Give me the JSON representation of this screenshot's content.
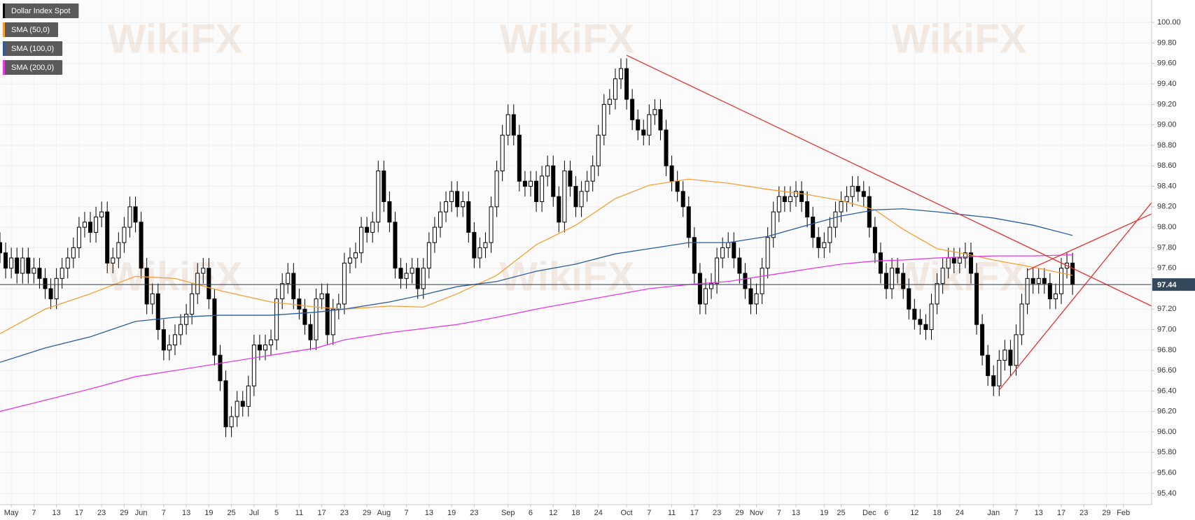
{
  "chart_data": {
    "type": "candlestick",
    "title": "Dollar Index Spot",
    "watermark": "WikiFX",
    "up_color": "#ffffff",
    "down_color": "#000000",
    "candles": {
      "open": [
        97.85,
        97.75,
        97.6,
        97.7,
        97.55,
        97.7,
        97.55,
        97.6,
        97.5,
        97.4,
        97.3,
        97.5,
        97.6,
        97.7,
        97.8,
        98.0,
        98.05,
        97.95,
        98.1,
        98.15,
        97.65,
        97.7,
        97.85,
        98.0,
        98.2,
        98.05,
        97.6,
        97.25,
        97.35,
        97.0,
        96.8,
        96.85,
        96.95,
        97.05,
        97.15,
        97.35,
        97.55,
        97.6,
        97.3,
        96.75,
        96.5,
        96.05,
        96.15,
        96.3,
        96.25,
        96.45,
        96.85,
        96.8,
        96.85,
        96.9,
        97.3,
        97.45,
        97.55,
        97.3,
        97.2,
        97.05,
        96.9,
        97.3,
        97.35,
        96.95,
        97.2,
        97.25,
        97.65,
        97.7,
        97.75,
        98.0,
        97.95,
        98.05,
        98.55,
        98.25,
        98.05,
        97.6,
        97.5,
        97.55,
        97.6,
        97.4,
        97.6,
        97.85,
        98.0,
        98.15,
        98.25,
        98.35,
        98.2,
        98.25,
        97.95,
        97.7,
        97.8,
        97.85,
        98.2,
        98.55,
        98.9,
        99.1,
        98.9,
        98.45,
        98.4,
        98.45,
        98.25,
        98.5,
        98.6,
        98.3,
        98.05,
        98.55,
        98.4,
        98.2,
        98.35,
        98.45,
        98.6,
        98.9,
        99.2,
        99.25,
        99.45,
        99.55,
        99.25,
        99.05,
        98.95,
        98.9,
        99.1,
        99.15,
        98.95,
        98.6,
        98.45,
        98.35,
        98.2,
        97.9,
        97.55,
        97.25,
        97.4,
        97.45,
        97.7,
        97.8,
        97.85,
        97.7,
        97.55,
        97.4,
        97.25,
        97.35,
        97.6,
        97.9,
        98.15,
        98.3,
        98.25,
        98.3,
        98.35,
        98.25,
        98.1,
        97.9,
        97.8,
        97.85,
        98.0,
        98.15,
        98.25,
        98.3,
        98.4,
        98.35,
        98.3,
        98.0,
        97.75,
        97.55,
        97.4,
        97.6,
        97.55,
        97.4,
        97.2,
        97.1,
        97.05,
        97.0,
        97.25,
        97.45,
        97.6,
        97.7,
        97.65,
        97.7,
        97.75,
        97.55,
        97.05,
        96.75,
        96.55,
        96.45,
        96.7,
        96.8,
        96.65,
        96.95,
        97.25,
        97.5,
        97.45,
        97.5,
        97.45,
        97.3,
        97.35,
        97.6,
        97.65
      ],
      "high": [
        97.95,
        97.85,
        97.8,
        97.8,
        97.8,
        97.8,
        97.7,
        97.7,
        97.6,
        97.5,
        97.6,
        97.7,
        97.8,
        97.9,
        98.1,
        98.15,
        98.15,
        98.2,
        98.25,
        98.25,
        97.8,
        97.95,
        98.1,
        98.3,
        98.3,
        98.15,
        97.7,
        97.45,
        97.45,
        97.1,
        96.95,
        97.05,
        97.15,
        97.25,
        97.45,
        97.65,
        97.7,
        97.7,
        97.4,
        96.85,
        96.6,
        96.25,
        96.4,
        96.4,
        96.55,
        96.95,
        96.95,
        96.95,
        97.0,
        97.4,
        97.55,
        97.65,
        97.65,
        97.4,
        97.3,
        97.15,
        97.4,
        97.45,
        97.45,
        97.3,
        97.35,
        97.75,
        97.8,
        97.85,
        98.1,
        98.1,
        98.15,
        98.65,
        98.65,
        98.35,
        98.15,
        97.7,
        97.65,
        97.7,
        97.7,
        97.7,
        97.95,
        98.1,
        98.25,
        98.35,
        98.45,
        98.45,
        98.35,
        98.35,
        98.05,
        97.9,
        97.95,
        98.3,
        98.65,
        99.0,
        99.2,
        99.2,
        99.0,
        98.55,
        98.55,
        98.55,
        98.6,
        98.7,
        98.7,
        98.4,
        98.65,
        98.65,
        98.5,
        98.45,
        98.55,
        98.7,
        99.0,
        99.3,
        99.35,
        99.55,
        99.65,
        99.65,
        99.35,
        99.15,
        99.05,
        99.2,
        99.25,
        99.25,
        99.05,
        98.7,
        98.55,
        98.45,
        98.3,
        98.0,
        97.65,
        97.5,
        97.55,
        97.8,
        97.9,
        97.95,
        97.95,
        97.8,
        97.65,
        97.5,
        97.45,
        97.7,
        98.0,
        98.25,
        98.4,
        98.4,
        98.4,
        98.45,
        98.45,
        98.35,
        98.2,
        98.0,
        97.95,
        98.1,
        98.25,
        98.35,
        98.4,
        98.5,
        98.5,
        98.45,
        98.4,
        98.1,
        97.85,
        97.65,
        97.7,
        97.7,
        97.65,
        97.5,
        97.3,
        97.2,
        97.15,
        97.35,
        97.55,
        97.7,
        97.8,
        97.8,
        97.8,
        97.85,
        97.85,
        97.65,
        97.15,
        96.85,
        96.65,
        96.8,
        96.9,
        96.9,
        97.05,
        97.35,
        97.6,
        97.6,
        97.6,
        97.6,
        97.55,
        97.45,
        97.7,
        97.75,
        97.75
      ],
      "low": [
        97.65,
        97.5,
        97.5,
        97.45,
        97.45,
        97.45,
        97.45,
        97.4,
        97.3,
        97.2,
        97.2,
        97.4,
        97.5,
        97.6,
        97.7,
        97.9,
        97.85,
        97.85,
        98.0,
        97.55,
        97.55,
        97.6,
        97.75,
        97.9,
        97.95,
        97.5,
        97.15,
        97.15,
        96.9,
        96.7,
        96.7,
        96.75,
        96.85,
        96.95,
        97.05,
        97.25,
        97.45,
        97.2,
        96.65,
        96.4,
        95.95,
        95.95,
        96.05,
        96.15,
        96.15,
        96.35,
        96.7,
        96.7,
        96.75,
        96.8,
        97.2,
        97.35,
        97.2,
        97.1,
        96.95,
        96.8,
        96.8,
        97.2,
        96.85,
        96.85,
        97.1,
        97.15,
        97.55,
        97.6,
        97.65,
        97.85,
        97.85,
        97.95,
        98.15,
        97.95,
        97.5,
        97.4,
        97.4,
        97.45,
        97.3,
        97.3,
        97.5,
        97.75,
        97.9,
        98.05,
        98.15,
        98.1,
        98.1,
        97.85,
        97.6,
        97.6,
        97.7,
        97.75,
        98.1,
        98.45,
        98.8,
        98.8,
        98.35,
        98.3,
        98.3,
        98.15,
        98.15,
        98.4,
        98.2,
        97.95,
        97.95,
        98.3,
        98.1,
        98.1,
        98.25,
        98.35,
        98.5,
        98.8,
        99.1,
        99.15,
        99.35,
        99.15,
        98.95,
        98.85,
        98.8,
        98.8,
        99.0,
        98.85,
        98.5,
        98.35,
        98.25,
        98.1,
        97.8,
        97.45,
        97.15,
        97.15,
        97.3,
        97.35,
        97.6,
        97.7,
        97.6,
        97.45,
        97.3,
        97.15,
        97.15,
        97.25,
        97.5,
        97.8,
        98.05,
        98.15,
        98.15,
        98.2,
        98.15,
        98.0,
        97.8,
        97.7,
        97.7,
        97.75,
        97.9,
        98.05,
        98.15,
        98.2,
        98.25,
        98.2,
        97.9,
        97.65,
        97.45,
        97.3,
        97.3,
        97.45,
        97.3,
        97.1,
        97.0,
        96.95,
        96.9,
        96.9,
        97.15,
        97.35,
        97.5,
        97.55,
        97.55,
        97.6,
        97.45,
        96.95,
        96.65,
        96.45,
        96.35,
        96.35,
        96.6,
        96.55,
        96.55,
        96.85,
        97.15,
        97.35,
        97.35,
        97.35,
        97.2,
        97.2,
        97.25,
        97.5,
        97.34
      ],
      "close": [
        97.75,
        97.6,
        97.7,
        97.55,
        97.7,
        97.55,
        97.6,
        97.5,
        97.4,
        97.3,
        97.5,
        97.6,
        97.7,
        97.8,
        98.0,
        98.05,
        97.95,
        98.1,
        98.15,
        97.65,
        97.7,
        97.85,
        98.0,
        98.2,
        98.05,
        97.6,
        97.25,
        97.35,
        97.0,
        96.8,
        96.85,
        96.95,
        97.05,
        97.15,
        97.35,
        97.55,
        97.6,
        97.3,
        96.75,
        96.5,
        96.05,
        96.15,
        96.3,
        96.25,
        96.45,
        96.85,
        96.8,
        96.85,
        96.9,
        97.3,
        97.45,
        97.55,
        97.3,
        97.2,
        97.05,
        96.9,
        97.3,
        97.35,
        96.95,
        97.2,
        97.25,
        97.65,
        97.7,
        97.75,
        98.0,
        97.95,
        98.05,
        98.55,
        98.25,
        98.05,
        97.6,
        97.5,
        97.55,
        97.6,
        97.4,
        97.6,
        97.85,
        98.0,
        98.15,
        98.25,
        98.35,
        98.2,
        98.25,
        97.95,
        97.7,
        97.8,
        97.85,
        98.2,
        98.55,
        98.9,
        99.1,
        98.9,
        98.45,
        98.4,
        98.45,
        98.25,
        98.5,
        98.6,
        98.3,
        98.05,
        98.55,
        98.4,
        98.2,
        98.35,
        98.45,
        98.6,
        98.9,
        99.2,
        99.25,
        99.45,
        99.55,
        99.25,
        99.05,
        98.95,
        98.9,
        99.1,
        99.15,
        98.95,
        98.6,
        98.45,
        98.35,
        98.2,
        97.9,
        97.55,
        97.25,
        97.4,
        97.45,
        97.7,
        97.8,
        97.85,
        97.7,
        97.55,
        97.4,
        97.25,
        97.35,
        97.6,
        97.9,
        98.15,
        98.3,
        98.25,
        98.3,
        98.35,
        98.25,
        98.1,
        97.9,
        97.8,
        97.85,
        98.0,
        98.15,
        98.25,
        98.3,
        98.4,
        98.35,
        98.3,
        98.0,
        97.75,
        97.55,
        97.4,
        97.6,
        97.55,
        97.4,
        97.2,
        97.1,
        97.05,
        97.0,
        97.25,
        97.45,
        97.6,
        97.7,
        97.65,
        97.7,
        97.75,
        97.55,
        97.05,
        96.75,
        96.55,
        96.45,
        96.7,
        96.8,
        96.65,
        96.95,
        97.25,
        97.5,
        97.45,
        97.5,
        97.45,
        97.3,
        97.35,
        97.6,
        97.65,
        97.44
      ]
    },
    "series": [
      {
        "name": "SMA (50,0)",
        "color": "#f5a033",
        "x": [
          0,
          8,
          16,
          24,
          31,
          39,
          48,
          56,
          61,
          69,
          75,
          81,
          88,
          95,
          102,
          109,
          115,
          122,
          129,
          136,
          143,
          149,
          155,
          160,
          166,
          171,
          176,
          183,
          190
        ],
        "values": [
          96.96,
          97.2,
          97.35,
          97.52,
          97.5,
          97.38,
          97.27,
          97.22,
          97.2,
          97.23,
          97.22,
          97.35,
          97.53,
          97.83,
          98.02,
          98.28,
          98.41,
          98.47,
          98.43,
          98.37,
          98.32,
          98.26,
          98.17,
          97.98,
          97.79,
          97.74,
          97.68,
          97.61,
          97.53
        ]
      },
      {
        "name": "SMA (100,0)",
        "color": "#2b5d9b",
        "x": [
          0,
          8,
          16,
          24,
          31,
          39,
          48,
          56,
          61,
          69,
          75,
          81,
          88,
          95,
          102,
          109,
          115,
          122,
          129,
          136,
          143,
          149,
          155,
          160,
          166,
          171,
          176,
          183,
          190
        ],
        "values": [
          96.68,
          96.82,
          96.93,
          97.08,
          97.12,
          97.14,
          97.14,
          97.17,
          97.2,
          97.27,
          97.34,
          97.42,
          97.47,
          97.57,
          97.64,
          97.74,
          97.79,
          97.85,
          97.85,
          97.91,
          98.02,
          98.11,
          98.17,
          98.18,
          98.15,
          98.12,
          98.09,
          98.02,
          97.92
        ]
      },
      {
        "name": "SMA (200,0)",
        "color": "#e53be5",
        "x": [
          0,
          8,
          16,
          24,
          31,
          39,
          48,
          56,
          61,
          69,
          75,
          81,
          88,
          95,
          102,
          109,
          115,
          122,
          129,
          136,
          143,
          149,
          155,
          160,
          166,
          171,
          176,
          183,
          190
        ],
        "values": [
          96.2,
          96.31,
          96.42,
          96.54,
          96.6,
          96.67,
          96.75,
          96.82,
          96.9,
          96.97,
          97.01,
          97.05,
          97.12,
          97.2,
          97.27,
          97.34,
          97.4,
          97.44,
          97.47,
          97.53,
          97.59,
          97.64,
          97.67,
          97.68,
          97.7,
          97.71,
          97.72,
          97.72,
          97.73
        ]
      }
    ],
    "trendlines": {
      "color": "#e8312f",
      "lines": [
        {
          "x": [
            111,
            204
          ],
          "values": [
            99.68,
            97.23
          ]
        },
        {
          "x": [
            177,
            204
          ],
          "values": [
            96.41,
            98.24
          ]
        },
        {
          "x": [
            182,
            204
          ],
          "values": [
            97.58,
            98.13
          ]
        }
      ]
    },
    "last_price": 97.44,
    "xlim": [
      0,
      204
    ],
    "xticks": [
      {
        "value": 2,
        "label": "May"
      },
      {
        "value": 6,
        "label": "7"
      },
      {
        "value": 10,
        "label": "13"
      },
      {
        "value": 14,
        "label": "17"
      },
      {
        "value": 18,
        "label": "23"
      },
      {
        "value": 22,
        "label": "29"
      },
      {
        "value": 25,
        "label": "Jun"
      },
      {
        "value": 29,
        "label": "7"
      },
      {
        "value": 33,
        "label": "13"
      },
      {
        "value": 37,
        "label": "19"
      },
      {
        "value": 41,
        "label": "25"
      },
      {
        "value": 45,
        "label": "Jul"
      },
      {
        "value": 49,
        "label": "5"
      },
      {
        "value": 53,
        "label": "11"
      },
      {
        "value": 57,
        "label": "17"
      },
      {
        "value": 61,
        "label": "23"
      },
      {
        "value": 65,
        "label": "29"
      },
      {
        "value": 68,
        "label": "Aug"
      },
      {
        "value": 72,
        "label": "7"
      },
      {
        "value": 76,
        "label": "13"
      },
      {
        "value": 80,
        "label": "19"
      },
      {
        "value": 84,
        "label": "23"
      },
      {
        "value": 90,
        "label": "Sep"
      },
      {
        "value": 94,
        "label": "6"
      },
      {
        "value": 98,
        "label": "12"
      },
      {
        "value": 102,
        "label": "18"
      },
      {
        "value": 106,
        "label": "24"
      },
      {
        "value": 111,
        "label": "Oct"
      },
      {
        "value": 115,
        "label": "7"
      },
      {
        "value": 119,
        "label": "11"
      },
      {
        "value": 123,
        "label": "17"
      },
      {
        "value": 127,
        "label": "23"
      },
      {
        "value": 131,
        "label": "29"
      },
      {
        "value": 134,
        "label": "Nov"
      },
      {
        "value": 138,
        "label": "7"
      },
      {
        "value": 141,
        "label": "13"
      },
      {
        "value": 146,
        "label": "19"
      },
      {
        "value": 149,
        "label": "25"
      },
      {
        "value": 154,
        "label": "Dec"
      },
      {
        "value": 157,
        "label": "6"
      },
      {
        "value": 162,
        "label": "12"
      },
      {
        "value": 166,
        "label": "18"
      },
      {
        "value": 170,
        "label": "24"
      },
      {
        "value": 176,
        "label": "Jan"
      },
      {
        "value": 180,
        "label": "7"
      },
      {
        "value": 184,
        "label": "13"
      },
      {
        "value": 188,
        "label": "17"
      },
      {
        "value": 192,
        "label": "23"
      },
      {
        "value": 196,
        "label": "29"
      },
      {
        "value": 199,
        "label": "Feb"
      }
    ],
    "ylim": [
      95.29,
      100.22
    ],
    "yticks": [
      {
        "value": 95.4,
        "label": "95.40"
      },
      {
        "value": 95.6,
        "label": "95.60"
      },
      {
        "value": 95.8,
        "label": "95.80"
      },
      {
        "value": 96.0,
        "label": "96.00"
      },
      {
        "value": 96.2,
        "label": "96.20"
      },
      {
        "value": 96.4,
        "label": "96.40"
      },
      {
        "value": 96.6,
        "label": "96.60"
      },
      {
        "value": 96.8,
        "label": "96.80"
      },
      {
        "value": 97.0,
        "label": "97.00"
      },
      {
        "value": 97.2,
        "label": "97.20"
      },
      {
        "value": 97.4,
        "label": "97.40"
      },
      {
        "value": 97.6,
        "label": "97.60"
      },
      {
        "value": 97.8,
        "label": "97.80"
      },
      {
        "value": 98.0,
        "label": "98.00"
      },
      {
        "value": 98.2,
        "label": "98.20"
      },
      {
        "value": 98.4,
        "label": "98.40"
      },
      {
        "value": 98.6,
        "label": "98.60"
      },
      {
        "value": 98.8,
        "label": "98.80"
      },
      {
        "value": 99.0,
        "label": "99.00"
      },
      {
        "value": 99.2,
        "label": "99.20"
      },
      {
        "value": 99.4,
        "label": "99.40"
      },
      {
        "value": 99.6,
        "label": "99.60"
      },
      {
        "value": 99.8,
        "label": "99.80"
      },
      {
        "value": 100.0,
        "label": "100.00"
      }
    ],
    "grid": true
  }
}
